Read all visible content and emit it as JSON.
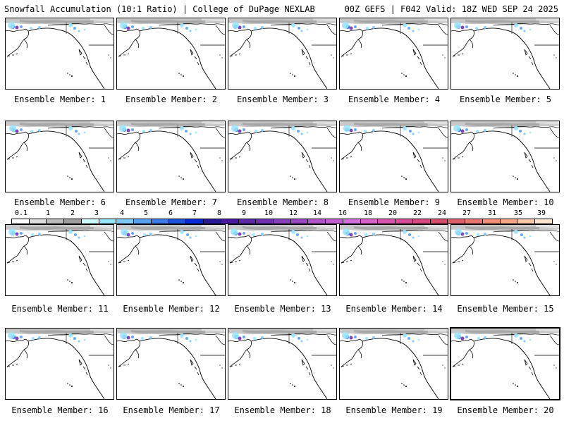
{
  "header": {
    "title_left": "Snowfall Accumulation (10:1 Ratio) | College of DuPage NEXLAB",
    "title_right": "00Z GEFS | F042 Valid: 18Z WED SEP 24 2025"
  },
  "panels": [
    {
      "label": "Ensemble Member: 1"
    },
    {
      "label": "Ensemble Member: 2"
    },
    {
      "label": "Ensemble Member: 3"
    },
    {
      "label": "Ensemble Member: 4"
    },
    {
      "label": "Ensemble Member: 5"
    },
    {
      "label": "Ensemble Member: 6"
    },
    {
      "label": "Ensemble Member: 7"
    },
    {
      "label": "Ensemble Member: 8"
    },
    {
      "label": "Ensemble Member: 9"
    },
    {
      "label": "Ensemble Member: 10"
    },
    {
      "label": "Ensemble Member: 11"
    },
    {
      "label": "Ensemble Member: 12"
    },
    {
      "label": "Ensemble Member: 13"
    },
    {
      "label": "Ensemble Member: 14"
    },
    {
      "label": "Ensemble Member: 15"
    },
    {
      "label": "Ensemble Member: 16"
    },
    {
      "label": "Ensemble Member: 17"
    },
    {
      "label": "Ensemble Member: 18"
    },
    {
      "label": "Ensemble Member: 19"
    },
    {
      "label": "Ensemble Member: 20"
    }
  ],
  "colorbar": {
    "ticks": [
      "0.1",
      "1",
      "2",
      "3",
      "4",
      "5",
      "6",
      "7",
      "8",
      "9",
      "10",
      "12",
      "14",
      "16",
      "18",
      "20",
      "22",
      "24",
      "27",
      "31",
      "35",
      "39"
    ],
    "colors": [
      "#ffffff",
      "#dcdcdc",
      "#bdbdbd",
      "#9e9e9e",
      "#ccffff",
      "#99e6ff",
      "#7fc8f8",
      "#5aa0f0",
      "#3d78e6",
      "#2050e0",
      "#0a2ad8",
      "#2a1a9a",
      "#4a1aa0",
      "#5e2aa8",
      "#7030b0",
      "#8840b8",
      "#9a48c0",
      "#b055c8",
      "#c060d0",
      "#d070d8",
      "#d860c8",
      "#d855b0",
      "#d84c98",
      "#d84880",
      "#d84c6c",
      "#e0606a",
      "#e8786e",
      "#f09078",
      "#f4a888",
      "#f8c8a8",
      "#fce4cc"
    ]
  }
}
